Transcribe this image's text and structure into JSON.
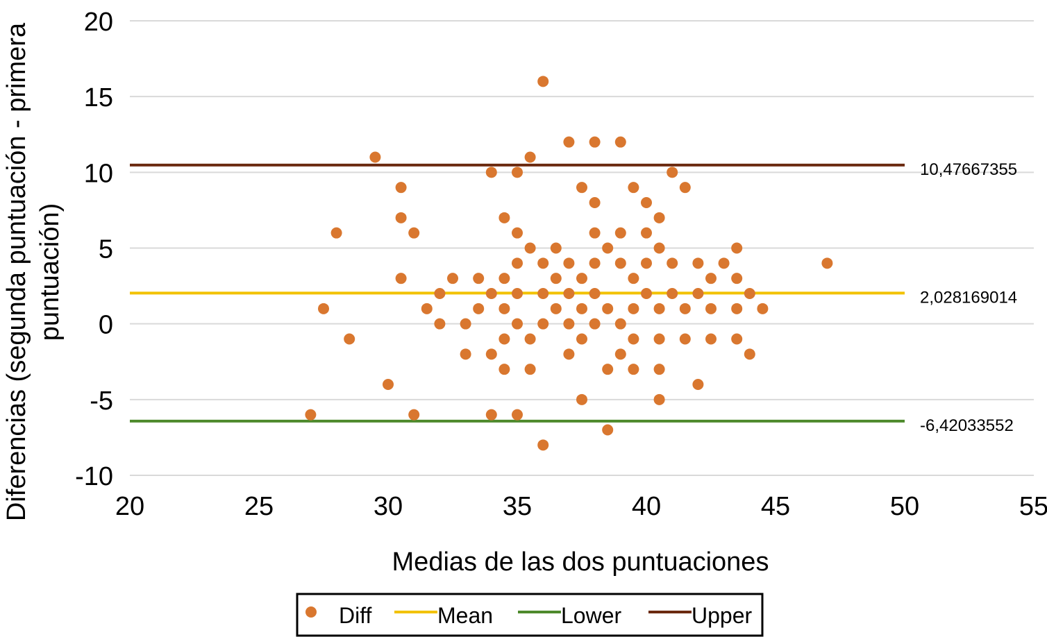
{
  "chart_data": {
    "type": "scatter",
    "xlabel": "Medias de las dos puntuaciones",
    "ylabel_lines": [
      "Diferencias (segunda puntuación - primera",
      "puntuación)"
    ],
    "xlim": [
      20,
      55
    ],
    "ylim": [
      -10,
      20
    ],
    "x_ticks": [
      "20",
      "25",
      "30",
      "35",
      "40",
      "45",
      "50",
      "55"
    ],
    "y_ticks": [
      "20",
      "15",
      "10",
      "5",
      "0",
      "-5",
      "-10"
    ],
    "grid": true,
    "legend_position": "bottom",
    "colors": {
      "Diff": "#d9772f",
      "Mean": "#f2c200",
      "Lower": "#4e8a2c",
      "Upper": "#6b2a10",
      "grid": "#d9d9d9"
    },
    "legend": [
      {
        "name": "Diff",
        "kind": "marker"
      },
      {
        "name": "Mean",
        "kind": "line"
      },
      {
        "name": "Lower",
        "kind": "line"
      },
      {
        "name": "Upper",
        "kind": "line"
      }
    ],
    "lines": [
      {
        "name": "Upper",
        "y": 10.47667355,
        "x_range": [
          20,
          50
        ],
        "label": "10,47667355"
      },
      {
        "name": "Mean",
        "y": 2.028169014,
        "x_range": [
          20,
          50
        ],
        "label": "2,028169014"
      },
      {
        "name": "Lower",
        "y": -6.42033552,
        "x_range": [
          20,
          50
        ],
        "label": "-6,42033552"
      }
    ],
    "series": [
      {
        "name": "Diff",
        "points": [
          [
            27,
            -6
          ],
          [
            27.5,
            1
          ],
          [
            28,
            6
          ],
          [
            28.5,
            -1
          ],
          [
            29.5,
            11
          ],
          [
            30,
            -4
          ],
          [
            30.5,
            9
          ],
          [
            30.5,
            7
          ],
          [
            30.5,
            3
          ],
          [
            31,
            6
          ],
          [
            31,
            -6
          ],
          [
            31.5,
            1
          ],
          [
            32,
            2
          ],
          [
            32,
            0
          ],
          [
            32.5,
            3
          ],
          [
            33,
            0
          ],
          [
            33,
            -2
          ],
          [
            33.5,
            3
          ],
          [
            33.5,
            1
          ],
          [
            34,
            10
          ],
          [
            34,
            2
          ],
          [
            34,
            -2
          ],
          [
            34,
            -6
          ],
          [
            34.5,
            7
          ],
          [
            34.5,
            3
          ],
          [
            34.5,
            1
          ],
          [
            34.5,
            -1
          ],
          [
            34.5,
            -3
          ],
          [
            35,
            10
          ],
          [
            35,
            6
          ],
          [
            35,
            4
          ],
          [
            35,
            2
          ],
          [
            35,
            0
          ],
          [
            35,
            -6
          ],
          [
            35.5,
            11
          ],
          [
            35.5,
            5
          ],
          [
            35.5,
            -1
          ],
          [
            35.5,
            -3
          ],
          [
            36,
            16
          ],
          [
            36,
            4
          ],
          [
            36,
            2
          ],
          [
            36,
            0
          ],
          [
            36,
            -8
          ],
          [
            36.5,
            5
          ],
          [
            36.5,
            3
          ],
          [
            36.5,
            1
          ],
          [
            37,
            12
          ],
          [
            37,
            4
          ],
          [
            37,
            2
          ],
          [
            37,
            0
          ],
          [
            37,
            -2
          ],
          [
            37.5,
            9
          ],
          [
            37.5,
            3
          ],
          [
            37.5,
            1
          ],
          [
            37.5,
            -1
          ],
          [
            37.5,
            -5
          ],
          [
            38,
            12
          ],
          [
            38,
            8
          ],
          [
            38,
            6
          ],
          [
            38,
            4
          ],
          [
            38,
            2
          ],
          [
            38,
            0
          ],
          [
            38.5,
            5
          ],
          [
            38.5,
            1
          ],
          [
            38.5,
            -3
          ],
          [
            38.5,
            -7
          ],
          [
            39,
            12
          ],
          [
            39,
            6
          ],
          [
            39,
            4
          ],
          [
            39,
            0
          ],
          [
            39,
            -2
          ],
          [
            39.5,
            9
          ],
          [
            39.5,
            3
          ],
          [
            39.5,
            1
          ],
          [
            39.5,
            -1
          ],
          [
            39.5,
            -3
          ],
          [
            40,
            8
          ],
          [
            40,
            6
          ],
          [
            40,
            4
          ],
          [
            40,
            2
          ],
          [
            40.5,
            7
          ],
          [
            40.5,
            5
          ],
          [
            40.5,
            1
          ],
          [
            40.5,
            -1
          ],
          [
            40.5,
            -3
          ],
          [
            40.5,
            -5
          ],
          [
            41,
            10
          ],
          [
            41,
            4
          ],
          [
            41,
            2
          ],
          [
            41.5,
            9
          ],
          [
            41.5,
            1
          ],
          [
            41.5,
            -1
          ],
          [
            42,
            4
          ],
          [
            42,
            2
          ],
          [
            42,
            -4
          ],
          [
            42.5,
            3
          ],
          [
            42.5,
            1
          ],
          [
            42.5,
            -1
          ],
          [
            43,
            4
          ],
          [
            43.5,
            5
          ],
          [
            43.5,
            3
          ],
          [
            43.5,
            1
          ],
          [
            43.5,
            -1
          ],
          [
            44,
            2
          ],
          [
            44,
            -2
          ],
          [
            44.5,
            1
          ],
          [
            47,
            4
          ]
        ]
      }
    ]
  }
}
